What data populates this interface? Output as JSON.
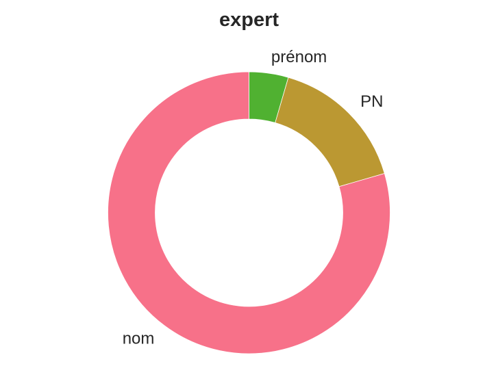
{
  "chart_data": {
    "type": "pie",
    "title": "expert",
    "donut": true,
    "start_angle_deg": 90,
    "direction": "clockwise",
    "slices": [
      {
        "label": "prénom",
        "value": 4.5,
        "color": "#50b131"
      },
      {
        "label": "PN",
        "value": 16.0,
        "color": "#bb9832"
      },
      {
        "label": "nom",
        "value": 79.5,
        "color": "#f77189"
      }
    ]
  }
}
